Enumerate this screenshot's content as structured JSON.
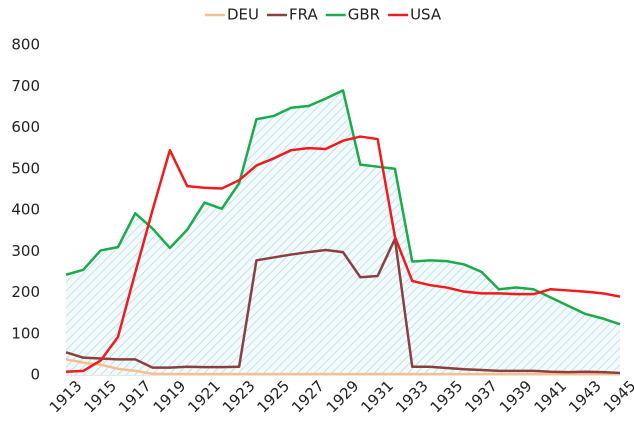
{
  "chart_data": {
    "type": "line",
    "categories": [
      "1913",
      null,
      "1915",
      null,
      "1917",
      null,
      "1919",
      null,
      "1921",
      null,
      "1923",
      null,
      "1925",
      null,
      "1927",
      null,
      "1929",
      null,
      "1931",
      null,
      "1933",
      null,
      "1935",
      null,
      "1937",
      null,
      "1939",
      null,
      "1941",
      null,
      "1943",
      null,
      "1945"
    ],
    "series": [
      {
        "name": "DEU",
        "color": "#f5c08f",
        "values": [
          38,
          30,
          25,
          15,
          10,
          3,
          2,
          2,
          2,
          2,
          2,
          2,
          2,
          2,
          2,
          2,
          2,
          2,
          2,
          2,
          2,
          2,
          2,
          2,
          2,
          2,
          2,
          2,
          2,
          2,
          2,
          2,
          2
        ]
      },
      {
        "name": "FRA",
        "color": "#8b4040",
        "values": [
          55,
          42,
          40,
          38,
          38,
          18,
          18,
          20,
          19,
          19,
          20,
          278,
          285,
          292,
          298,
          303,
          298,
          237,
          240,
          330,
          20,
          20,
          17,
          14,
          12,
          10,
          10,
          10,
          8,
          7,
          8,
          7,
          5
        ]
      },
      {
        "name": "GBR",
        "color": "#1aab4a",
        "values": [
          243,
          255,
          302,
          310,
          392,
          355,
          308,
          352,
          418,
          403,
          465,
          620,
          628,
          648,
          652,
          670,
          690,
          510,
          505,
          500,
          275,
          278,
          276,
          268,
          250,
          208,
          212,
          208,
          188,
          168,
          148,
          137,
          123
        ]
      },
      {
        "name": "USA",
        "color": "#ee1c1c",
        "values": [
          8,
          10,
          35,
          92,
          248,
          400,
          545,
          458,
          454,
          452,
          472,
          508,
          525,
          545,
          550,
          548,
          568,
          578,
          572,
          335,
          228,
          218,
          212,
          202,
          198,
          198,
          196,
          196,
          208,
          205,
          202,
          198,
          190
        ]
      }
    ],
    "area_series": 2,
    "area_color": "#a9d3e0",
    "ylim": [
      0,
      800
    ],
    "yticks": [
      0,
      100,
      200,
      300,
      400,
      500,
      600,
      700,
      800
    ],
    "grid": false,
    "legend": "top"
  }
}
